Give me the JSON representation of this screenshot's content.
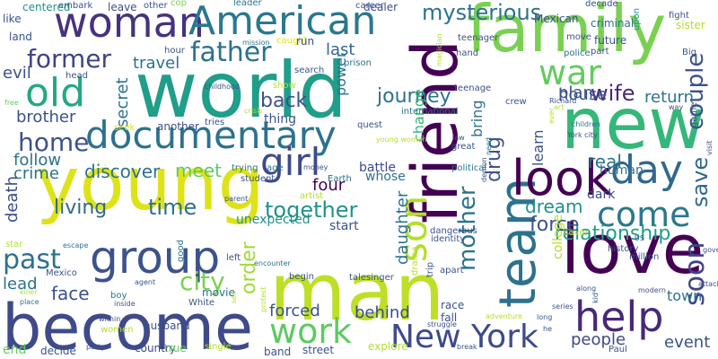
{
  "words": [
    {
      "text": "family",
      "color": "#7ad151"
    },
    {
      "text": "world",
      "color": "#1f9e89"
    },
    {
      "text": "man",
      "color": "#bddf26"
    },
    {
      "text": "young",
      "color": "#dde318"
    },
    {
      "text": "become",
      "color": "#3e4a89"
    },
    {
      "text": "documentary",
      "color": "#2c728e"
    },
    {
      "text": "friend",
      "color": "#440154"
    },
    {
      "text": "new",
      "color": "#35b779"
    },
    {
      "text": "love",
      "color": "#440154"
    },
    {
      "text": "woman",
      "color": "#46327e"
    },
    {
      "text": "American",
      "color": "#2a788e"
    },
    {
      "text": "team",
      "color": "#2c728e"
    },
    {
      "text": "group",
      "color": "#3b528b"
    },
    {
      "text": "girl",
      "color": "#3e4a89"
    },
    {
      "text": "look",
      "color": "#440154"
    },
    {
      "text": "day",
      "color": "#31688e"
    },
    {
      "text": "old",
      "color": "#22a884"
    },
    {
      "text": "war",
      "color": "#65cb5e"
    },
    {
      "text": "help",
      "color": "#482878"
    },
    {
      "text": "come",
      "color": "#2a788e"
    },
    {
      "text": "son",
      "color": "#b5de2b"
    },
    {
      "text": "New York",
      "color": "#3e4a89"
    },
    {
      "text": "work",
      "color": "#5ec962"
    },
    {
      "text": "father",
      "color": "#2c728e"
    },
    {
      "text": "home",
      "color": "#3b528b"
    },
    {
      "text": "former",
      "color": "#414487"
    },
    {
      "text": "past",
      "color": "#2c728e"
    },
    {
      "text": "soon",
      "color": "#414487"
    },
    {
      "text": "mysterious",
      "color": "#2c728e"
    },
    {
      "text": "couple",
      "color": "#3b528b"
    },
    {
      "text": "together",
      "color": "#21918c"
    },
    {
      "text": "city",
      "color": "#7ad151"
    },
    {
      "text": "mother",
      "color": "#2c728e"
    },
    {
      "text": "drug",
      "color": "#3b528b"
    },
    {
      "text": "journey",
      "color": "#2c728e"
    },
    {
      "text": "wife",
      "color": "#482878"
    },
    {
      "text": "back",
      "color": "#3b528b"
    },
    {
      "text": "save",
      "color": "#31688e"
    },
    {
      "text": "order",
      "color": "#a0da39"
    },
    {
      "text": "time",
      "color": "#2c728e"
    },
    {
      "text": "living",
      "color": "#31688e"
    },
    {
      "text": "relationship",
      "color": "#1f9e89"
    },
    {
      "text": "dream",
      "color": "#21918c"
    },
    {
      "text": "force",
      "color": "#3b528b"
    },
    {
      "text": "real",
      "color": "#2c728e"
    },
    {
      "text": "people",
      "color": "#3e4a89"
    },
    {
      "text": "event",
      "color": "#3b528b"
    },
    {
      "text": "face",
      "color": "#3b528b"
    },
    {
      "text": "lead",
      "color": "#2c728e"
    },
    {
      "text": "crime",
      "color": "#2c728e"
    },
    {
      "text": "meet",
      "color": "#5ec962"
    },
    {
      "text": "discover",
      "color": "#2c728e"
    },
    {
      "text": "travel",
      "color": "#2c728e"
    },
    {
      "text": "brother",
      "color": "#3b528b"
    },
    {
      "text": "evil",
      "color": "#3b528b"
    },
    {
      "text": "follow",
      "color": "#2c728e"
    },
    {
      "text": "secret",
      "color": "#2c728e"
    },
    {
      "text": "last",
      "color": "#31688e"
    },
    {
      "text": "house",
      "color": "#3b528b"
    },
    {
      "text": "return",
      "color": "#2c728e"
    },
    {
      "text": "death",
      "color": "#3e4a89"
    },
    {
      "text": "daughter",
      "color": "#2c728e"
    },
    {
      "text": "four",
      "color": "#440154"
    },
    {
      "text": "forced",
      "color": "#3b528b"
    },
    {
      "text": "behind",
      "color": "#3e4a89"
    },
    {
      "text": "town",
      "color": "#2c728e"
    },
    {
      "text": "college",
      "color": "#b5de2b"
    },
    {
      "text": "learn",
      "color": "#3b528b"
    },
    {
      "text": "bring",
      "color": "#2c728e"
    },
    {
      "text": "human",
      "color": "#2c728e"
    },
    {
      "text": "power",
      "color": "#2c728e"
    },
    {
      "text": "change",
      "color": "#35b779"
    },
    {
      "text": "unexpected",
      "color": "#21918c"
    },
    {
      "text": "start",
      "color": "#3b528b"
    },
    {
      "text": "dark",
      "color": "#3e4a89"
    },
    {
      "text": "battle",
      "color": "#3e4a89"
    },
    {
      "text": "whose",
      "color": "#2c728e"
    },
    {
      "text": "thing",
      "color": "#3b528b"
    },
    {
      "text": "another",
      "color": "#3b528b"
    },
    {
      "text": "husband",
      "color": "#3b528b"
    },
    {
      "text": "movie",
      "color": "#2c728e"
    },
    {
      "text": "street",
      "color": "#3b528b"
    },
    {
      "text": "explore",
      "color": "#b5de2b"
    },
    {
      "text": "country",
      "color": "#3e4a89"
    },
    {
      "text": "true",
      "color": "#65cb5e"
    },
    {
      "text": "single",
      "color": "#b5de2b"
    },
    {
      "text": "band",
      "color": "#3b528b"
    },
    {
      "text": "decide",
      "color": "#3b528b"
    },
    {
      "text": "end",
      "color": "#65cb5e"
    },
    {
      "text": "like",
      "color": "#3b528b"
    },
    {
      "text": "land",
      "color": "#3b528b"
    },
    {
      "text": "centered",
      "color": "#21918c"
    },
    {
      "text": "embark",
      "color": "#3b528b"
    },
    {
      "text": "leave",
      "color": "#3b528b"
    },
    {
      "text": "other",
      "color": "#3b528b"
    },
    {
      "text": "cop",
      "color": "#7ad151"
    },
    {
      "text": "leader",
      "color": "#2c728e"
    },
    {
      "text": "career",
      "color": "#3b528b"
    },
    {
      "text": "dealer",
      "color": "#3b528b"
    },
    {
      "text": "decade",
      "color": "#3b528b"
    },
    {
      "text": "Mexican",
      "color": "#3b528b"
    },
    {
      "text": "criminal",
      "color": "#2c728e"
    },
    {
      "text": "move",
      "color": "#3b528b"
    },
    {
      "text": "upon",
      "color": "#21918c"
    },
    {
      "text": "fight",
      "color": "#3b528b"
    },
    {
      "text": "sister",
      "color": "#b5de2b"
    },
    {
      "text": "future",
      "color": "#3b528b"
    },
    {
      "text": "part",
      "color": "#3b528b"
    },
    {
      "text": "police",
      "color": "#2c728e"
    },
    {
      "text": "Big",
      "color": "#3b528b"
    },
    {
      "text": "hour",
      "color": "#3b528b"
    },
    {
      "text": "mission",
      "color": "#2c728e"
    },
    {
      "text": "caught",
      "color": "#dde318"
    },
    {
      "text": "run",
      "color": "#3b528b"
    },
    {
      "text": "prison",
      "color": "#2c728e"
    },
    {
      "text": "teenager",
      "color": "#3b528b"
    },
    {
      "text": "hand",
      "color": "#3b528b"
    },
    {
      "text": "head",
      "color": "#3b528b"
    },
    {
      "text": "search",
      "color": "#3b528b"
    },
    {
      "text": "show",
      "color": "#b5de2b"
    },
    {
      "text": "teenage",
      "color": "#3b528b"
    },
    {
      "text": "childhood",
      "color": "#3b528b"
    },
    {
      "text": "free",
      "color": "#65cb5e"
    },
    {
      "text": "seek",
      "color": "#dde318"
    },
    {
      "text": "tries",
      "color": "#3b528b"
    },
    {
      "text": "crisis",
      "color": "#b5de2b"
    },
    {
      "text": "quest",
      "color": "#3b528b"
    },
    {
      "text": "international",
      "color": "#2c728e"
    },
    {
      "text": "crew",
      "color": "#3b528b"
    },
    {
      "text": "great",
      "color": "#3b528b"
    },
    {
      "text": "age",
      "color": "#2c728e"
    },
    {
      "text": "money",
      "color": "#3b528b"
    },
    {
      "text": "political",
      "color": "#2c728e"
    },
    {
      "text": "trying",
      "color": "#2c728e"
    },
    {
      "text": "need",
      "color": "#2c728e"
    },
    {
      "text": "demon",
      "color": "#3b528b"
    },
    {
      "text": "student",
      "color": "#3b528b"
    },
    {
      "text": "Earth",
      "color": "#2c728e"
    },
    {
      "text": "parent",
      "color": "#3b528b"
    },
    {
      "text": "artist",
      "color": "#b5de2b"
    },
    {
      "text": "dangerous",
      "color": "#3b528b"
    },
    {
      "text": "identity",
      "color": "#3b528b"
    },
    {
      "text": "trip",
      "color": "#3b528b"
    },
    {
      "text": "drama",
      "color": "#b5de2b"
    },
    {
      "text": "never",
      "color": "#b5de2b"
    },
    {
      "text": "history",
      "color": "#3b528b"
    },
    {
      "text": "million",
      "color": "#3b528b"
    },
    {
      "text": "star",
      "color": "#b5de2b"
    },
    {
      "text": "escape",
      "color": "#2c728e"
    },
    {
      "text": "good",
      "color": "#2c728e"
    },
    {
      "text": "left",
      "color": "#3b528b"
    },
    {
      "text": "begin",
      "color": "#3b528b"
    },
    {
      "text": "talesinger",
      "color": "#3b528b"
    },
    {
      "text": "apart",
      "color": "#3b528b"
    },
    {
      "text": "Mexico",
      "color": "#3b528b"
    },
    {
      "text": "agent",
      "color": "#3b528b"
    },
    {
      "text": "killer",
      "color": "#b5de2b"
    },
    {
      "text": "place",
      "color": "#2c728e"
    },
    {
      "text": "boy",
      "color": "#2c728e"
    },
    {
      "text": "inside",
      "color": "#3b528b"
    },
    {
      "text": "White",
      "color": "#3b528b"
    },
    {
      "text": "encounter",
      "color": "#2c728e"
    },
    {
      "text": "sex",
      "color": "#b5de2b"
    },
    {
      "text": "protect",
      "color": "#b5de2b"
    },
    {
      "text": "within",
      "color": "#3b528b"
    },
    {
      "text": "women",
      "color": "#b5de2b"
    },
    {
      "text": "party",
      "color": "#3b528b"
    },
    {
      "text": "race",
      "color": "#3b528b"
    },
    {
      "text": "fall",
      "color": "#3b528b"
    },
    {
      "text": "struggle",
      "color": "#3b528b"
    },
    {
      "text": "break",
      "color": "#3b528b"
    },
    {
      "text": "adventure",
      "color": "#b5de2b"
    },
    {
      "text": "long",
      "color": "#3b528b"
    },
    {
      "text": "he",
      "color": "#3b528b"
    },
    {
      "text": "series",
      "color": "#3b528b"
    },
    {
      "text": "along",
      "color": "#3b528b"
    },
    {
      "text": "kid",
      "color": "#3b528b"
    },
    {
      "text": "modern",
      "color": "#3b528b"
    },
    {
      "text": "attack",
      "color": "#3b528b"
    },
    {
      "text": "Paul",
      "color": "#3b528b"
    },
    {
      "text": "US",
      "color": "#3b528b"
    },
    {
      "text": "government",
      "color": "#3b528b"
    },
    {
      "text": "visit",
      "color": "#3b528b"
    },
    {
      "text": "game",
      "color": "#3b528b"
    },
    {
      "text": "way",
      "color": "#3b528b"
    },
    {
      "text": "children",
      "color": "#2c728e"
    },
    {
      "text": "York city",
      "color": "#3b528b"
    },
    {
      "text": "Richard",
      "color": "#3b528b"
    },
    {
      "text": "art",
      "color": "#b5de2b"
    },
    {
      "text": "ever",
      "color": "#b5de2b"
    },
    {
      "text": "law",
      "color": "#3b528b"
    },
    {
      "text": "magician",
      "color": "#b5de2b"
    },
    {
      "text": "young woman",
      "color": "#b5de2b"
    },
    {
      "text": "plan",
      "color": "#3b528b"
    },
    {
      "text": "working",
      "color": "#b5de2b"
    },
    {
      "text": "ago",
      "color": "#3b528b"
    },
    {
      "text": "wife",
      "color": "#3b528b"
    }
  ]
}
